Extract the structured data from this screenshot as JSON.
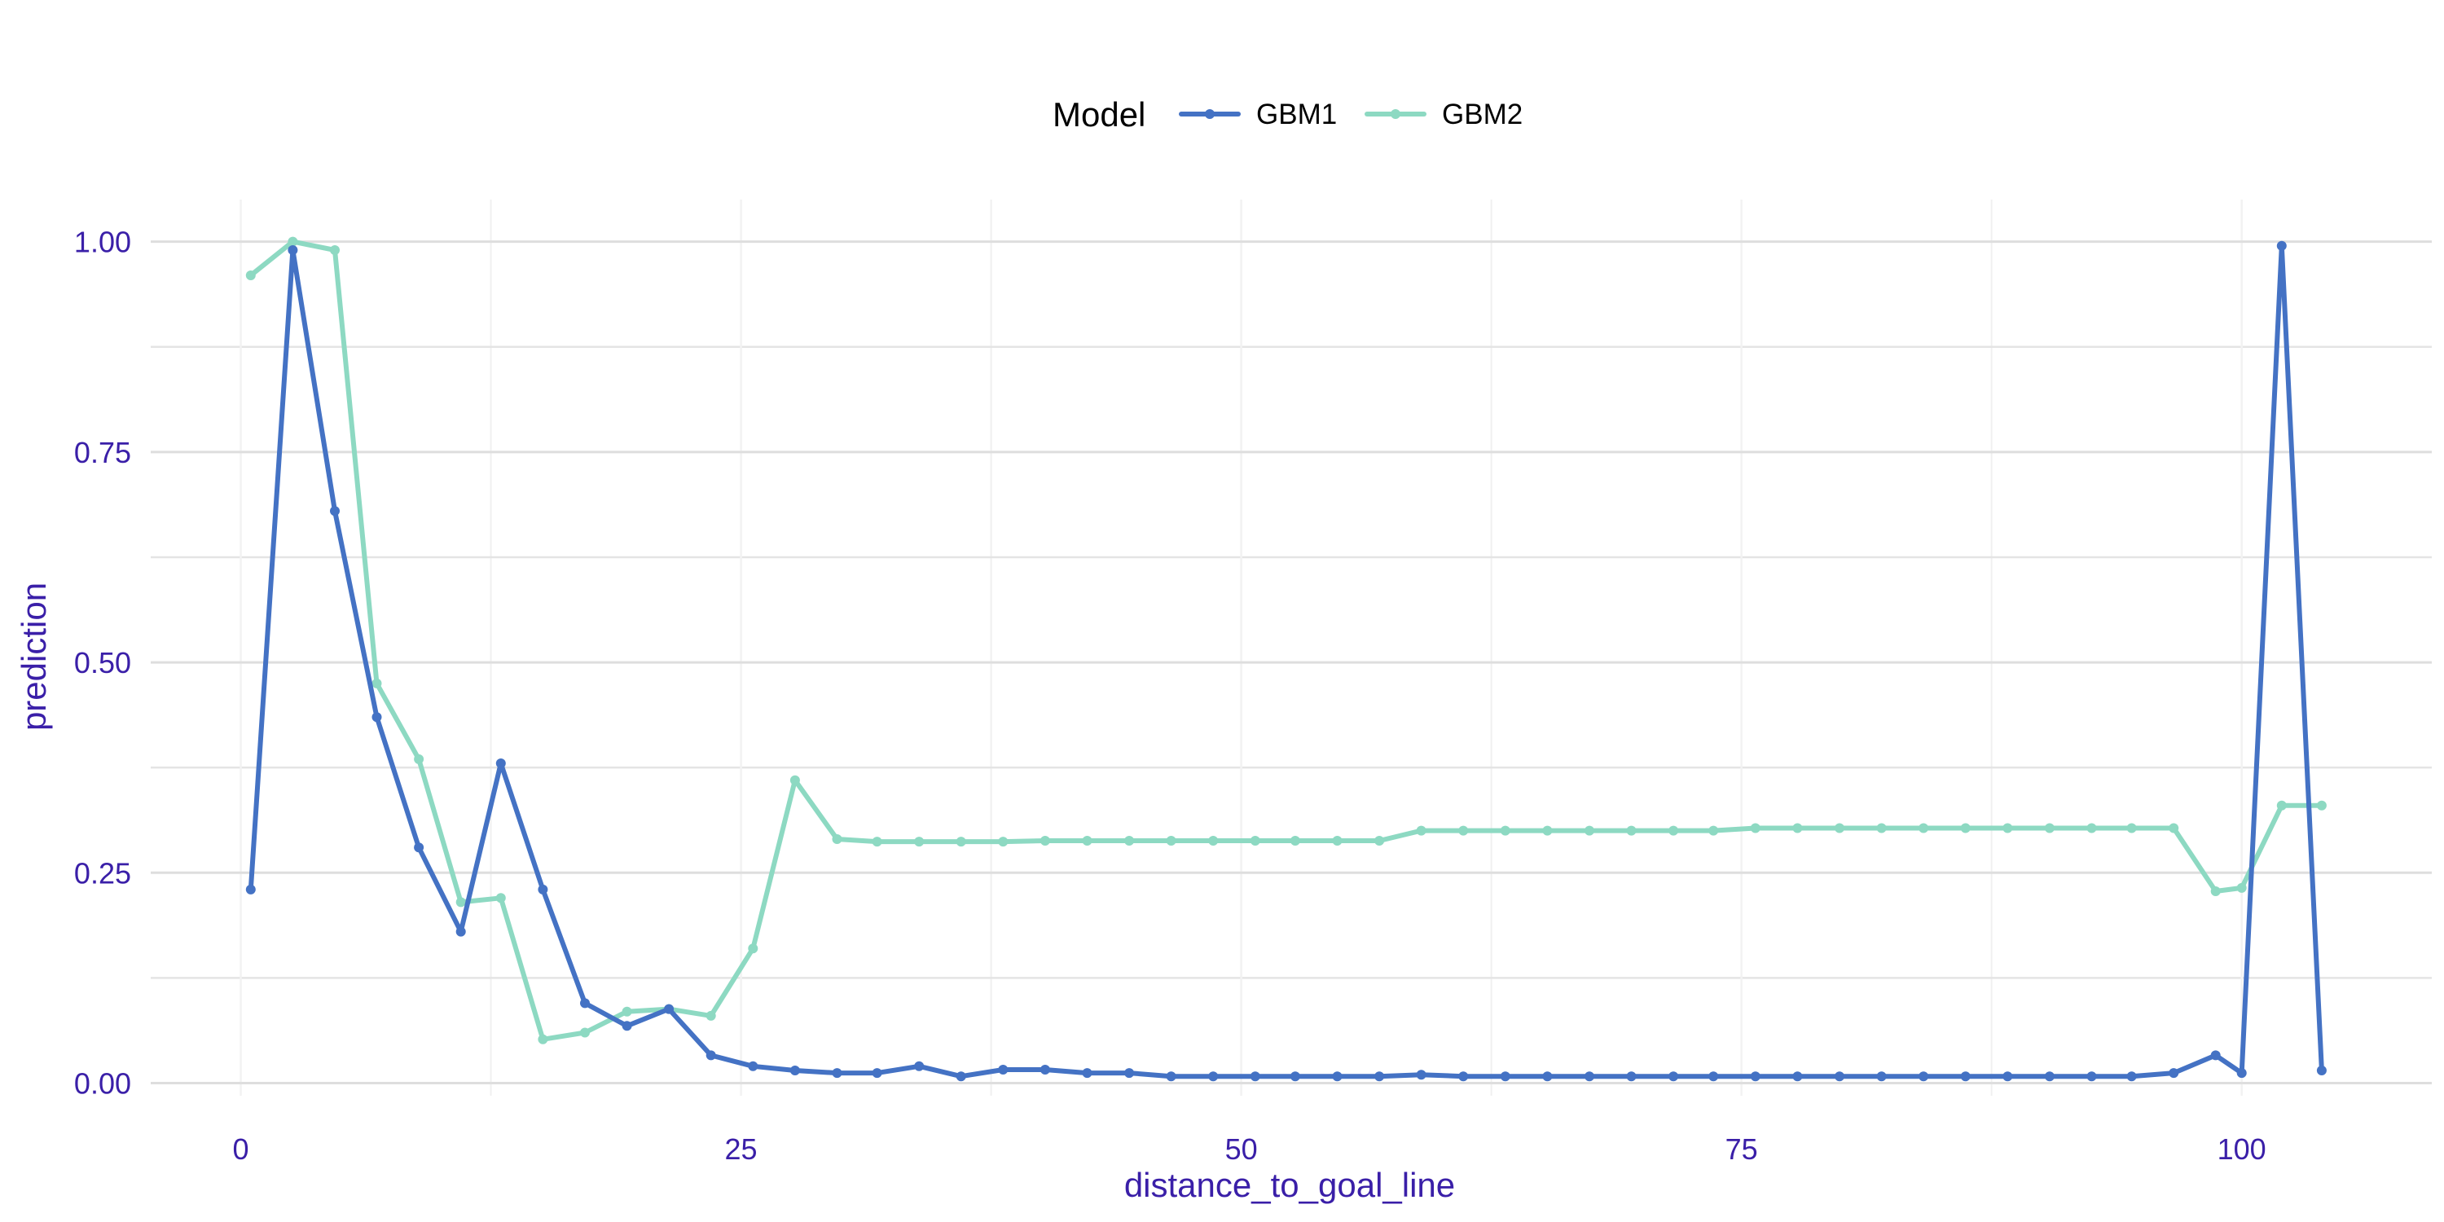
{
  "chart_data": {
    "type": "line",
    "title": "",
    "xlabel": "distance_to_goal_line",
    "ylabel": "prediction",
    "xlim": [
      -4.5,
      109.5
    ],
    "ylim": [
      -0.015,
      1.05
    ],
    "x_ticks": [
      0,
      25,
      50,
      75,
      100
    ],
    "x_tick_labels": [
      "0",
      "25",
      "50",
      "75",
      "100"
    ],
    "y_ticks": [
      0,
      0.25,
      0.5,
      0.75,
      1.0
    ],
    "y_tick_labels": [
      "0.00",
      "0.25",
      "0.50",
      "0.75",
      "1.00"
    ],
    "grid": true,
    "legend": {
      "title": "Model",
      "position": "top"
    },
    "series": [
      {
        "name": "GBM1",
        "color": "#4472c4",
        "x": [
          0.5,
          2.6,
          4.7,
          6.8,
          8.9,
          11.0,
          13.0,
          15.1,
          17.2,
          19.3,
          21.4,
          23.5,
          25.6,
          27.7,
          29.8,
          31.8,
          33.9,
          36.0,
          38.1,
          40.2,
          42.3,
          44.4,
          46.5,
          48.6,
          50.7,
          52.7,
          54.8,
          56.9,
          59.0,
          61.1,
          63.2,
          65.3,
          67.4,
          69.5,
          71.6,
          73.6,
          75.7,
          77.8,
          79.9,
          82.0,
          84.1,
          86.2,
          88.3,
          90.4,
          92.5,
          94.5,
          96.6,
          98.7,
          100.0,
          102.0,
          104.0
        ],
        "y": [
          0.23,
          0.99,
          0.68,
          0.435,
          0.28,
          0.18,
          0.38,
          0.23,
          0.095,
          0.068,
          0.088,
          0.033,
          0.02,
          0.015,
          0.012,
          0.012,
          0.02,
          0.008,
          0.016,
          0.016,
          0.012,
          0.012,
          0.008,
          0.008,
          0.008,
          0.008,
          0.008,
          0.008,
          0.01,
          0.008,
          0.008,
          0.008,
          0.008,
          0.008,
          0.008,
          0.008,
          0.008,
          0.008,
          0.008,
          0.008,
          0.008,
          0.008,
          0.008,
          0.008,
          0.008,
          0.008,
          0.012,
          0.033,
          0.012,
          0.995,
          0.015
        ]
      },
      {
        "name": "GBM2",
        "color": "#8dd9c2",
        "x": [
          0.5,
          2.6,
          4.7,
          6.8,
          8.9,
          11.0,
          13.0,
          15.1,
          17.2,
          19.3,
          21.4,
          23.5,
          25.6,
          27.7,
          29.8,
          31.8,
          33.9,
          36.0,
          38.1,
          40.2,
          42.3,
          44.4,
          46.5,
          48.6,
          50.7,
          52.7,
          54.8,
          56.9,
          59.0,
          61.1,
          63.2,
          65.3,
          67.4,
          69.5,
          71.6,
          73.6,
          75.7,
          77.8,
          79.9,
          82.0,
          84.1,
          86.2,
          88.3,
          90.4,
          92.5,
          94.5,
          96.6,
          98.7,
          100.0,
          102.0,
          104.0
        ],
        "y": [
          0.96,
          1.0,
          0.99,
          0.475,
          0.385,
          0.215,
          0.22,
          0.052,
          0.06,
          0.085,
          0.088,
          0.08,
          0.16,
          0.36,
          0.29,
          0.287,
          0.287,
          0.287,
          0.287,
          0.288,
          0.288,
          0.288,
          0.288,
          0.288,
          0.288,
          0.288,
          0.288,
          0.288,
          0.3,
          0.3,
          0.3,
          0.3,
          0.3,
          0.3,
          0.3,
          0.3,
          0.303,
          0.303,
          0.303,
          0.303,
          0.303,
          0.303,
          0.303,
          0.303,
          0.303,
          0.303,
          0.303,
          0.228,
          0.232,
          0.33,
          0.33
        ]
      }
    ]
  }
}
